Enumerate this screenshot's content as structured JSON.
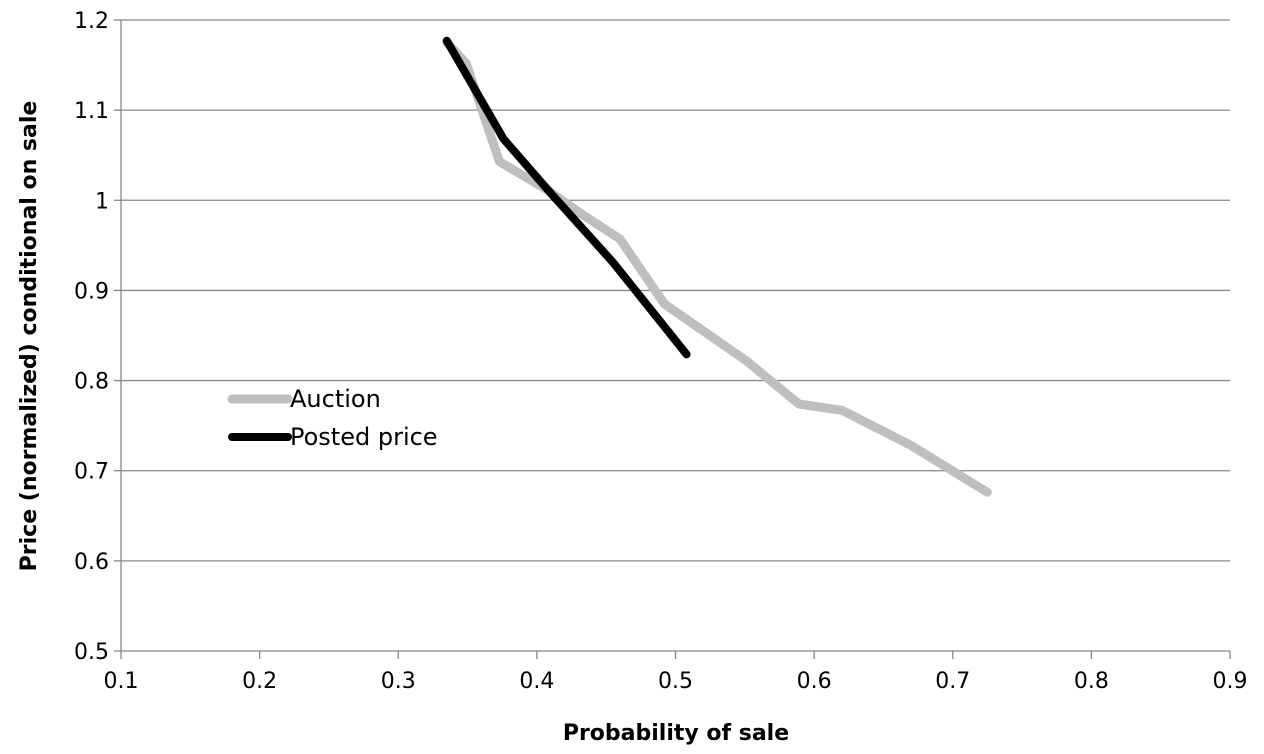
{
  "chart_data": {
    "type": "line",
    "title": "",
    "xlabel": "Probability of sale",
    "ylabel": "Price (normalized) conditional on sale",
    "xlim": [
      0.1,
      0.9
    ],
    "ylim": [
      0.5,
      1.2
    ],
    "xticks": [
      0.1,
      0.2,
      0.3,
      0.4,
      0.5,
      0.6,
      0.7,
      0.8,
      0.9
    ],
    "yticks": [
      0.5,
      0.6,
      0.7,
      0.8,
      0.9,
      1.0,
      1.1,
      1.2
    ],
    "xtick_labels": [
      "0.1",
      "0.2",
      "0.3",
      "0.4",
      "0.5",
      "0.6",
      "0.7",
      "0.8",
      "0.9"
    ],
    "ytick_labels": [
      "0.5",
      "0.6",
      "0.7",
      "0.8",
      "0.9",
      "1",
      "1.1",
      "1.2"
    ],
    "grid": "horizontal",
    "legend": "center-left",
    "series": [
      {
        "name": "Auction",
        "color": "#bfbfbf",
        "x": [
          0.335,
          0.349,
          0.373,
          0.408,
          0.432,
          0.46,
          0.492,
          0.551,
          0.589,
          0.62,
          0.67,
          0.725
        ],
        "y": [
          1.175,
          1.152,
          1.043,
          1.011,
          0.985,
          0.957,
          0.885,
          0.822,
          0.774,
          0.767,
          0.728,
          0.676
        ]
      },
      {
        "name": "Posted price",
        "color": "#000000",
        "x": [
          0.335,
          0.376,
          0.41,
          0.455,
          0.508
        ],
        "y": [
          1.177,
          1.068,
          1.008,
          0.931,
          0.829
        ]
      }
    ]
  }
}
